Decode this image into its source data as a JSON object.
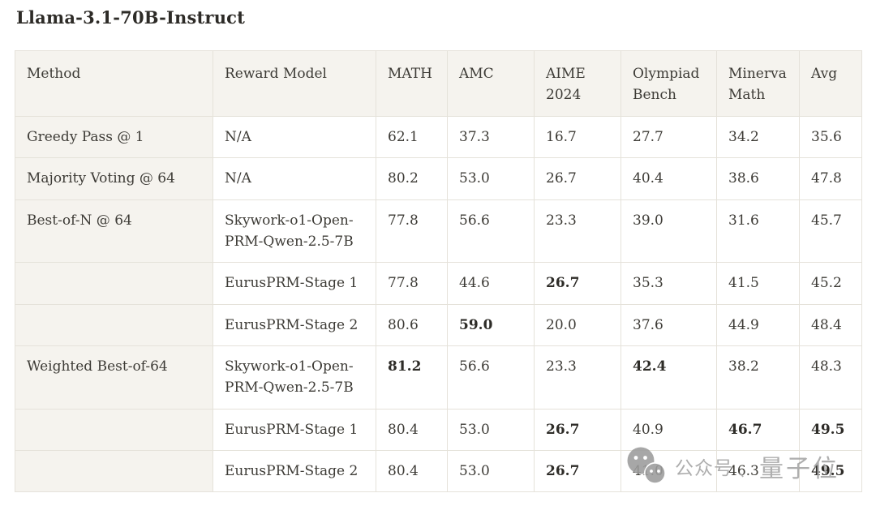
{
  "title": "Llama-3.1-70B-Instruct",
  "table": {
    "columns": [
      {
        "key": "method",
        "label": "Method"
      },
      {
        "key": "reward-model",
        "label": "Reward Model"
      },
      {
        "key": "math",
        "label": "MATH"
      },
      {
        "key": "amc",
        "label": "AMC"
      },
      {
        "key": "aime-2024",
        "label": "AIME 2024"
      },
      {
        "key": "olympiad-bench",
        "label": "Olympiad Bench"
      },
      {
        "key": "minerva-math",
        "label": "Minerva Math"
      },
      {
        "key": "avg",
        "label": "Avg"
      }
    ],
    "rows": [
      {
        "method": "Greedy Pass @ 1",
        "reward_model": "N/A",
        "scores": [
          "62.1",
          "37.3",
          "16.7",
          "27.7",
          "34.2",
          "35.6"
        ],
        "bold": []
      },
      {
        "method": "Majority Voting @ 64",
        "reward_model": "N/A",
        "scores": [
          "80.2",
          "53.0",
          "26.7",
          "40.4",
          "38.6",
          "47.8"
        ],
        "bold": []
      },
      {
        "method": "Best-of-N @ 64",
        "reward_model": "Skywork-o1-Open-PRM-Qwen-2.5-7B",
        "scores": [
          "77.8",
          "56.6",
          "23.3",
          "39.0",
          "31.6",
          "45.7"
        ],
        "bold": []
      },
      {
        "method": "",
        "reward_model": "EurusPRM-Stage 1",
        "scores": [
          "77.8",
          "44.6",
          "26.7",
          "35.3",
          "41.5",
          "45.2"
        ],
        "bold": [
          2
        ]
      },
      {
        "method": "",
        "reward_model": "EurusPRM-Stage 2",
        "scores": [
          "80.6",
          "59.0",
          "20.0",
          "37.6",
          "44.9",
          "48.4"
        ],
        "bold": [
          1
        ]
      },
      {
        "method": "Weighted Best-of-64",
        "reward_model": "Skywork-o1-Open-PRM-Qwen-2.5-7B",
        "scores": [
          "81.2",
          "56.6",
          "23.3",
          "42.4",
          "38.2",
          "48.3"
        ],
        "bold": [
          0,
          3
        ]
      },
      {
        "method": "",
        "reward_model": "EurusPRM-Stage 1",
        "scores": [
          "80.4",
          "53.0",
          "26.7",
          "40.9",
          "46.7",
          "49.5"
        ],
        "bold": [
          2,
          4,
          5
        ]
      },
      {
        "method": "",
        "reward_model": "EurusPRM-Stage 2",
        "scores": [
          "80.4",
          "53.0",
          "26.7",
          "41.0",
          "46.3",
          "49.5"
        ],
        "bold": [
          2,
          5
        ]
      }
    ]
  },
  "watermark": {
    "icon": "wechat-icon",
    "label_account": "公众号",
    "separator": "、",
    "label_name": "量子位"
  },
  "colors": {
    "header_bg": "#f5f3ee",
    "cell_bg": "#ffffff",
    "border": "#e5e2da",
    "text": "#3d3b36",
    "title_text": "#2d2b27",
    "watermark": "#a3a3a3"
  }
}
